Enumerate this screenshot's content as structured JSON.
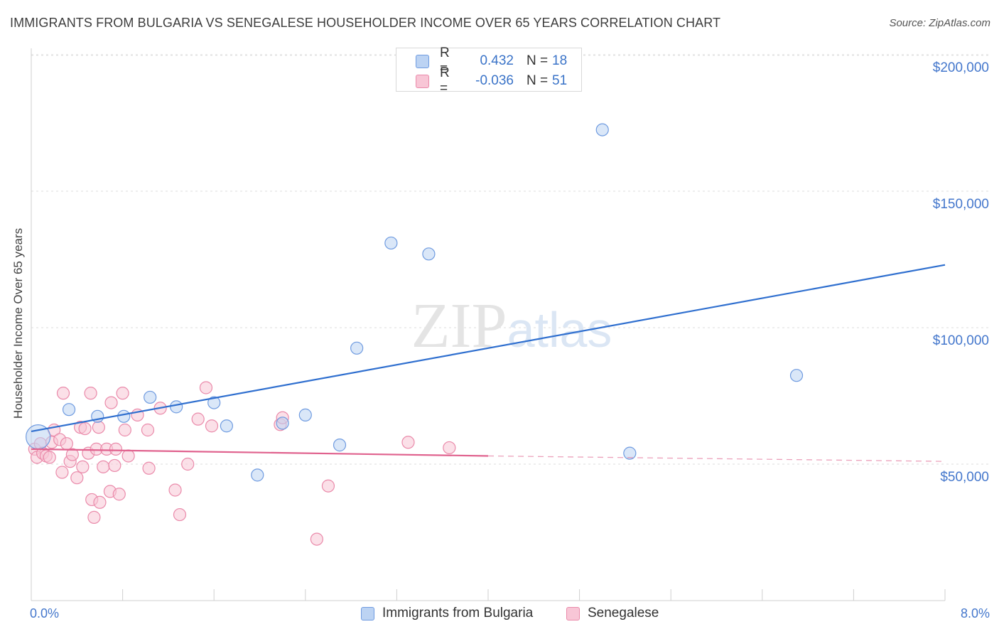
{
  "chart_data": {
    "type": "scatter",
    "title": "IMMIGRANTS FROM BULGARIA VS SENEGALESE HOUSEHOLDER INCOME OVER 65 YEARS CORRELATION CHART",
    "source": "Source: ZipAtlas.com",
    "ylabel": "Householder Income Over 65 years",
    "xlabel": "",
    "xlim": [
      0,
      8
    ],
    "ylim": [
      0,
      205000
    ],
    "x_tick_labels": [
      "0.0%",
      "8.0%"
    ],
    "y_ticks": [
      50000,
      100000,
      150000,
      200000
    ],
    "y_tick_labels": [
      "$50,000",
      "$100,000",
      "$150,000",
      "$200,000"
    ],
    "grid": "horizontal dashed",
    "watermark": "ZIPatlas",
    "legend_top": {
      "rows": [
        {
          "r_label": "R =",
          "r_value": "0.432",
          "n_label": "N =",
          "n_value": "18"
        },
        {
          "r_label": "R =",
          "r_value": "-0.036",
          "n_label": "N =",
          "n_value": "51"
        }
      ]
    },
    "series": [
      {
        "name": "Immigrants from Bulgaria",
        "color": "#6f9be0",
        "fill": "#bcd3f3",
        "line_color": "#2f6fcf",
        "trend": {
          "x": [
            0.0,
            8.0
          ],
          "y": [
            62000,
            123000
          ]
        },
        "points": [
          {
            "x": 0.06,
            "y": 60000,
            "big": true
          },
          {
            "x": 0.33,
            "y": 70000
          },
          {
            "x": 0.58,
            "y": 67500
          },
          {
            "x": 0.81,
            "y": 67500
          },
          {
            "x": 1.04,
            "y": 74500
          },
          {
            "x": 1.27,
            "y": 71000
          },
          {
            "x": 1.6,
            "y": 72500
          },
          {
            "x": 1.71,
            "y": 64000
          },
          {
            "x": 1.98,
            "y": 46000
          },
          {
            "x": 2.2,
            "y": 65000
          },
          {
            "x": 2.4,
            "y": 68000
          },
          {
            "x": 2.7,
            "y": 57000
          },
          {
            "x": 2.85,
            "y": 92500
          },
          {
            "x": 3.15,
            "y": 131000
          },
          {
            "x": 3.48,
            "y": 127000
          },
          {
            "x": 5.0,
            "y": 172500
          },
          {
            "x": 5.24,
            "y": 54000
          },
          {
            "x": 6.7,
            "y": 82500
          }
        ]
      },
      {
        "name": "Senegalese",
        "color": "#ea8aaa",
        "fill": "#f8c6d6",
        "line_color": "#e0628e",
        "trend": {
          "x": [
            0.0,
            4.0
          ],
          "y": [
            55500,
            53000
          ]
        },
        "trend_dashed": {
          "x": [
            4.0,
            8.0
          ],
          "y": [
            53000,
            51000
          ]
        },
        "points": [
          {
            "x": 0.03,
            "y": 55500
          },
          {
            "x": 0.05,
            "y": 52500
          },
          {
            "x": 0.08,
            "y": 57500
          },
          {
            "x": 0.1,
            "y": 54000
          },
          {
            "x": 0.13,
            "y": 53000
          },
          {
            "x": 0.16,
            "y": 52500
          },
          {
            "x": 0.18,
            "y": 58000
          },
          {
            "x": 0.2,
            "y": 62500
          },
          {
            "x": 0.25,
            "y": 59000
          },
          {
            "x": 0.27,
            "y": 47000
          },
          {
            "x": 0.28,
            "y": 76000
          },
          {
            "x": 0.31,
            "y": 57500
          },
          {
            "x": 0.34,
            "y": 51000
          },
          {
            "x": 0.36,
            "y": 53500
          },
          {
            "x": 0.4,
            "y": 45000
          },
          {
            "x": 0.43,
            "y": 63500
          },
          {
            "x": 0.45,
            "y": 49000
          },
          {
            "x": 0.47,
            "y": 63000
          },
          {
            "x": 0.5,
            "y": 54000
          },
          {
            "x": 0.52,
            "y": 76000
          },
          {
            "x": 0.53,
            "y": 37000
          },
          {
            "x": 0.55,
            "y": 30500
          },
          {
            "x": 0.57,
            "y": 55500
          },
          {
            "x": 0.59,
            "y": 63500
          },
          {
            "x": 0.6,
            "y": 36000
          },
          {
            "x": 0.63,
            "y": 49000
          },
          {
            "x": 0.66,
            "y": 55500
          },
          {
            "x": 0.69,
            "y": 40000
          },
          {
            "x": 0.7,
            "y": 72500
          },
          {
            "x": 0.73,
            "y": 49500
          },
          {
            "x": 0.74,
            "y": 55500
          },
          {
            "x": 0.77,
            "y": 39000
          },
          {
            "x": 0.8,
            "y": 76000
          },
          {
            "x": 0.82,
            "y": 62500
          },
          {
            "x": 0.85,
            "y": 53000
          },
          {
            "x": 0.93,
            "y": 68000
          },
          {
            "x": 1.02,
            "y": 62500
          },
          {
            "x": 1.03,
            "y": 48500
          },
          {
            "x": 1.13,
            "y": 70500
          },
          {
            "x": 1.26,
            "y": 40500
          },
          {
            "x": 1.3,
            "y": 31500
          },
          {
            "x": 1.37,
            "y": 50000
          },
          {
            "x": 1.46,
            "y": 66500
          },
          {
            "x": 1.53,
            "y": 78000
          },
          {
            "x": 1.58,
            "y": 64000
          },
          {
            "x": 2.18,
            "y": 64500
          },
          {
            "x": 2.2,
            "y": 67000
          },
          {
            "x": 2.5,
            "y": 22500
          },
          {
            "x": 2.6,
            "y": 42000
          },
          {
            "x": 3.3,
            "y": 58000
          },
          {
            "x": 3.66,
            "y": 56000
          }
        ]
      }
    ]
  }
}
